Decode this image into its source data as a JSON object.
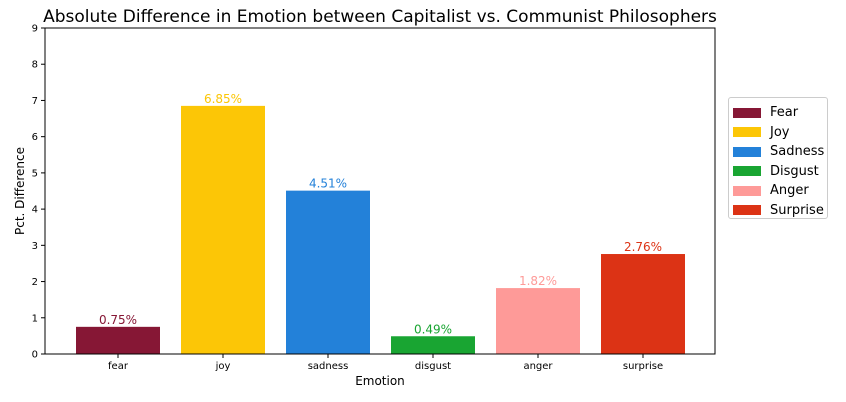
{
  "chart_data": {
    "type": "bar",
    "title": "Absolute Difference in Emotion between Capitalist vs. Communist Philosophers",
    "xlabel": "Emotion",
    "ylabel": "Pct. Difference",
    "ylim": [
      0,
      9
    ],
    "yticks": [
      "0",
      "1",
      "2",
      "3",
      "4",
      "5",
      "6",
      "7",
      "8",
      "9"
    ],
    "categories": [
      "fear",
      "joy",
      "sadness",
      "disgust",
      "anger",
      "surprise"
    ],
    "values": [
      0.75,
      6.85,
      4.51,
      0.49,
      1.82,
      2.76
    ],
    "data_labels": [
      "0.75%",
      "6.85%",
      "4.51%",
      "0.49%",
      "1.82%",
      "2.76%"
    ],
    "colors": [
      "#861735",
      "#fcc606",
      "#2381d9",
      "#19a532",
      "#fe9a98",
      "#dc3315"
    ],
    "legend": {
      "placement": "right",
      "entries": [
        "Fear",
        "Joy",
        "Sadness",
        "Disgust",
        "Anger",
        "Surprise"
      ]
    },
    "grid": false
  }
}
